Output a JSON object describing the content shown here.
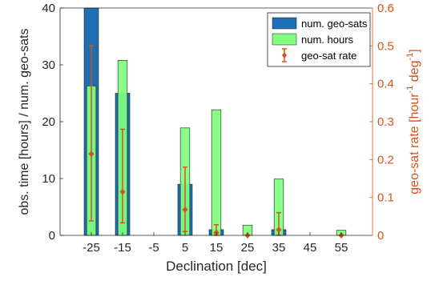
{
  "chart_data": {
    "type": "bar",
    "x_values": [
      -25,
      -15,
      -5,
      5,
      15,
      25,
      35,
      45,
      55
    ],
    "xlabel": "Declination [dec]",
    "ylabel_left": "obs. time [hours] / num. geo-sats",
    "ylabel_right": {
      "prefix": "geo-sat rate [hour",
      "sup1": "-1",
      "mid": " deg",
      "sup2": "-1",
      "suffix": "]"
    },
    "ylim_left": [
      0,
      40
    ],
    "ylim_right": [
      0,
      0.6
    ],
    "yticks_left": [
      0,
      10,
      20,
      30,
      40
    ],
    "yticks_right": [
      0,
      0.1,
      0.2,
      0.3,
      0.4,
      0.5,
      0.6
    ],
    "xlim": [
      -35,
      65
    ],
    "legend_position": "top-right",
    "series": [
      {
        "name": "num. geo-sats",
        "kind": "bar",
        "axis": "left",
        "color": "#1f6fb4",
        "values": [
          40,
          25,
          0,
          9,
          1,
          0,
          1,
          0,
          0
        ]
      },
      {
        "name": "num. hours",
        "kind": "bar",
        "axis": "left",
        "color": "#80ff80",
        "values": [
          26.3,
          30.8,
          0,
          18.9,
          22.1,
          1.8,
          9.9,
          0,
          0.9
        ]
      },
      {
        "name": "geo-sat rate",
        "kind": "errorbar",
        "axis": "right",
        "color": "#d95319",
        "x": [
          -25,
          -15,
          5,
          15,
          25,
          35,
          55
        ],
        "values": [
          0.215,
          0.115,
          0.068,
          0.007,
          0.0,
          0.015,
          0.0
        ],
        "error_low": [
          0.038,
          0.033,
          0.01,
          0.0,
          0.0,
          0.0,
          0.0
        ],
        "error_high": [
          0.5,
          0.28,
          0.18,
          0.028,
          0.0,
          0.06,
          0.0
        ]
      }
    ],
    "axis_color_right": "#d95319"
  }
}
